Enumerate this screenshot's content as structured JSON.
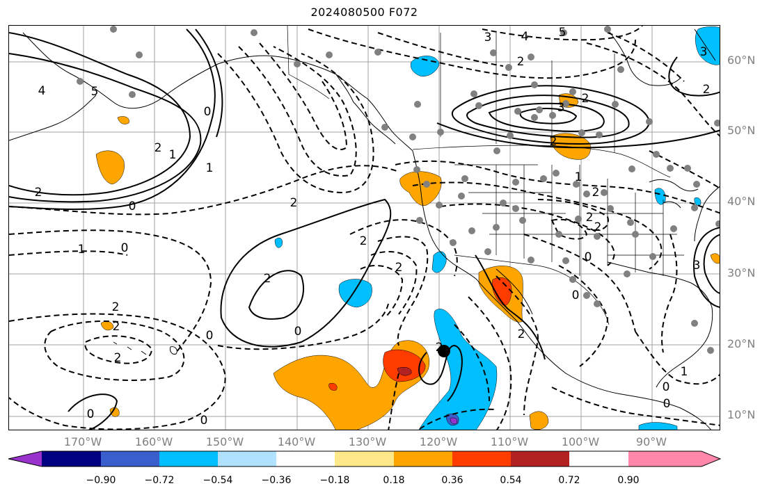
{
  "title": "2024080500 F072",
  "lat_labels": [
    "60°N",
    "50°N",
    "40°N",
    "30°N",
    "20°N",
    "10°N"
  ],
  "lon_labels": [
    "170°W",
    "160°W",
    "150°W",
    "140°W",
    "130°W",
    "120°W",
    "110°W",
    "100°W",
    "90°W"
  ],
  "contour_labels": [
    "4",
    "5",
    "0",
    "2",
    "1",
    "2",
    "0",
    "1",
    "0",
    "2",
    "1",
    "0",
    "2",
    "0",
    "2",
    "0",
    "2",
    "2",
    "3",
    "2",
    "2",
    "2",
    "2",
    "2",
    "1",
    "0",
    "0",
    "2",
    "3",
    "3",
    "2",
    "2",
    "2",
    "0",
    "0",
    "1",
    "0",
    "5",
    "4",
    "3",
    "2",
    "2"
  ],
  "colorbar": {
    "tick_labels": [
      "−0.90",
      "−0.72",
      "−0.54",
      "−0.36",
      "−0.18",
      "0.18",
      "0.36",
      "0.54",
      "0.72",
      "0.90"
    ],
    "colors": [
      "#9932cc",
      "#000080",
      "#3a5fcd",
      "#00bfff",
      "#b0e2ff",
      "#ffffff",
      "#ffe88a",
      "#ffa500",
      "#ff3c00",
      "#b22222",
      "#ff88aa"
    ]
  },
  "shading_colors": {
    "light_orange": "#ffe88a",
    "orange": "#ffa500",
    "red_orange": "#ff3c00",
    "dark_red": "#b22222",
    "light_blue": "#b0e2ff",
    "sky_blue": "#00bfff",
    "royal_blue": "#3a5fcd",
    "purple": "#9932cc"
  }
}
